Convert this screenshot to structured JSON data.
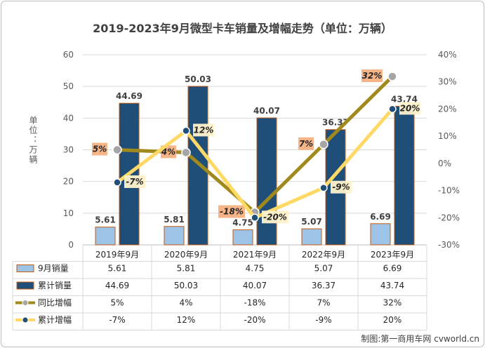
{
  "chart_data": {
    "type": "bar",
    "title": "2019-2023年9月微型卡车销量及增幅走势（单位：万辆）",
    "ylabel": "单位：万辆",
    "ylim": [
      0,
      60
    ],
    "y2lim": [
      -30,
      40
    ],
    "y_ticks": [
      "0",
      "10",
      "20",
      "30",
      "40",
      "50",
      "60"
    ],
    "y2_ticks": [
      "-30%",
      "-20%",
      "-10%",
      "0%",
      "10%",
      "20%",
      "30%",
      "40%"
    ],
    "categories": [
      "2019年9月",
      "2020年9月",
      "2021年9月",
      "2022年9月",
      "2023年9月"
    ],
    "series": [
      {
        "name": "9月销量",
        "kind": "bar",
        "axis": "left",
        "color": "#9dc3e6",
        "values": [
          5.61,
          5.81,
          4.75,
          5.07,
          6.69
        ],
        "labels": [
          "5.61",
          "5.81",
          "4.75",
          "5.07",
          "6.69"
        ]
      },
      {
        "name": "累计销量",
        "kind": "bar",
        "axis": "left",
        "color": "#1f4e79",
        "values": [
          44.69,
          50.03,
          40.07,
          36.37,
          43.74
        ],
        "labels": [
          "44.69",
          "50.03",
          "40.07",
          "36.37",
          "43.74"
        ]
      },
      {
        "name": "同比增幅",
        "kind": "line",
        "axis": "right",
        "color": "#a08a1e",
        "values": [
          5,
          4,
          -18,
          7,
          32
        ],
        "labels": [
          "5%",
          "4%",
          "-18%",
          "7%",
          "32%"
        ]
      },
      {
        "name": "累计增幅",
        "kind": "line",
        "axis": "right",
        "color": "#ffd966",
        "values": [
          -7,
          12,
          -20,
          -9,
          20
        ],
        "labels": [
          "-7%",
          "12%",
          "-20%",
          "-9%",
          "20%"
        ]
      }
    ],
    "grid": true,
    "legend": "data-table-bottom"
  },
  "credit": "制图:第一商用车网 cvworld.cn"
}
